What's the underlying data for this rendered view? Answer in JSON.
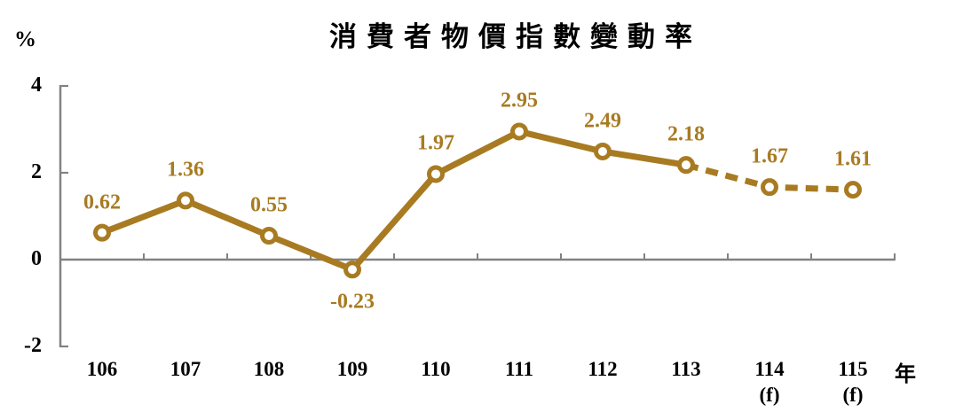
{
  "chart_data": {
    "type": "line",
    "title": "消費者物價指數變動率",
    "unit_label": "%",
    "x_axis_label": "年",
    "categories": [
      "106",
      "107",
      "108",
      "109",
      "110",
      "111",
      "112",
      "113",
      "114",
      "115"
    ],
    "category_suffixes": [
      "",
      "",
      "",
      "",
      "",
      "",
      "",
      "",
      "(f)",
      "(f)"
    ],
    "values": [
      0.62,
      1.36,
      0.55,
      -0.23,
      1.97,
      2.95,
      2.49,
      2.18,
      1.67,
      1.61
    ],
    "data_labels": [
      "0.62",
      "1.36",
      "0.55",
      "-0.23",
      "1.97",
      "2.95",
      "2.49",
      "2.18",
      "1.67",
      "1.61"
    ],
    "y_ticks": [
      {
        "label": "4",
        "value": 4
      },
      {
        "label": "2",
        "value": 2
      },
      {
        "label": "0",
        "value": 0
      },
      {
        "label": "-2",
        "value": -2
      }
    ],
    "ylim": [
      -2,
      4
    ],
    "dash_from_index": 7,
    "forecast_note": "dashed segments mark forecast years (f)",
    "line_color": "#A87B22",
    "axis_color": "#828282",
    "marker_fill": "#ffffff",
    "label_color": "#A87B22",
    "grid": "zero-baseline-only",
    "legend_position": "none"
  }
}
